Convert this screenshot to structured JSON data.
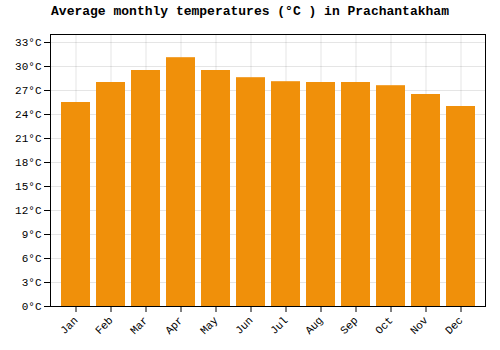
{
  "chart_data": {
    "type": "bar",
    "title": "Average monthly temperatures (°C ) in Prachantakham",
    "categories": [
      "Jan",
      "Feb",
      "Mar",
      "Apr",
      "May",
      "Jun",
      "Jul",
      "Aug",
      "Sep",
      "Oct",
      "Nov",
      "Dec"
    ],
    "values": [
      25.5,
      28.0,
      29.5,
      31.1,
      29.5,
      28.6,
      28.1,
      28.0,
      28.0,
      27.6,
      26.5,
      25.0
    ],
    "color": "#F0900A",
    "ylim": [
      0,
      34
    ],
    "yticks": [
      {
        "value": 0,
        "label": "0°C"
      },
      {
        "value": 3,
        "label": "3°C"
      },
      {
        "value": 6,
        "label": "6°C"
      },
      {
        "value": 9,
        "label": "9°C"
      },
      {
        "value": 12,
        "label": "12°C"
      },
      {
        "value": 15,
        "label": "15°C"
      },
      {
        "value": 18,
        "label": "18°C"
      },
      {
        "value": 21,
        "label": "21°C"
      },
      {
        "value": 24,
        "label": "24°C"
      },
      {
        "value": 27,
        "label": "27°C"
      },
      {
        "value": 30,
        "label": "30°C"
      },
      {
        "value": 33,
        "label": "33°C"
      }
    ],
    "grid": true
  }
}
